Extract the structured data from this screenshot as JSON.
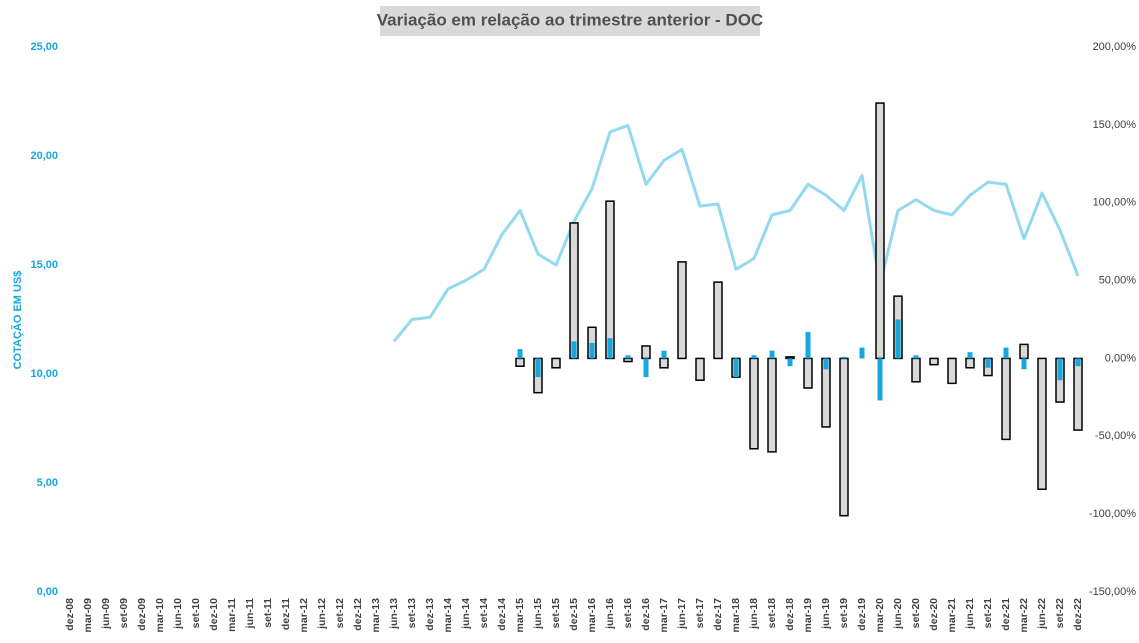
{
  "chart_data": {
    "type": "bar_line",
    "title": "Variação em relação ao trimestre anterior - DOC",
    "y_label": "COTAÇÃO EM US$",
    "categories": [
      "dez-08",
      "mar-09",
      "jun-09",
      "set-09",
      "dez-09",
      "mar-10",
      "jun-10",
      "set-10",
      "dez-10",
      "mar-11",
      "jun-11",
      "set-11",
      "dez-11",
      "mar-12",
      "jun-12",
      "set-12",
      "dez-12",
      "mar-13",
      "jun-13",
      "set-13",
      "dez-13",
      "mar-14",
      "jun-14",
      "set-14",
      "dez-14",
      "mar-15",
      "jun-15",
      "set-15",
      "dez-15",
      "mar-16",
      "jun-16",
      "set-16",
      "dez-16",
      "mar-17",
      "jun-17",
      "set-17",
      "dez-17",
      "mar-18",
      "jun-18",
      "set-18",
      "dez-18",
      "mar-19",
      "jun-19",
      "set-19",
      "dez-19",
      "mar-20",
      "jun-20",
      "set-20",
      "dez-20",
      "mar-21",
      "jun-21",
      "set-21",
      "dez-21",
      "mar-22",
      "jun-22",
      "set-22",
      "dez-22"
    ],
    "series": [
      {
        "type": "line",
        "color": "#93d9f0",
        "values": [
          null,
          null,
          null,
          null,
          null,
          null,
          null,
          null,
          null,
          null,
          null,
          null,
          null,
          null,
          null,
          null,
          null,
          null,
          11.5,
          12.5,
          12.6,
          13.9,
          14.3,
          14.8,
          16.4,
          17.5,
          15.5,
          15.0,
          17.0,
          18.5,
          21.1,
          21.4,
          18.7,
          19.8,
          20.3,
          17.7,
          17.8,
          14.8,
          15.3,
          17.3,
          17.5,
          18.7,
          18.2,
          17.5,
          19.1,
          14.1,
          17.5,
          18.0,
          17.5,
          17.3,
          18.2,
          18.8,
          18.7,
          16.2,
          18.3,
          16.6,
          14.5
        ]
      },
      {
        "type": "bar",
        "axis": "y2",
        "color": "#d9d9d9",
        "values": [
          null,
          null,
          null,
          null,
          null,
          null,
          null,
          null,
          null,
          null,
          null,
          null,
          null,
          null,
          null,
          null,
          null,
          null,
          null,
          null,
          null,
          null,
          null,
          null,
          null,
          -5,
          -22,
          -6,
          87,
          20,
          101,
          -2,
          8,
          -6,
          62,
          -14,
          49,
          -12,
          -58,
          -60,
          1,
          -19,
          -44,
          -101,
          null,
          164,
          40,
          -15,
          -4,
          -16,
          -6,
          -11,
          -52,
          9,
          -84,
          -28,
          -46
        ]
      },
      {
        "type": "bar",
        "axis": "y2",
        "color": "#15a7e0",
        "values": [
          null,
          null,
          null,
          null,
          null,
          null,
          null,
          null,
          null,
          null,
          null,
          null,
          null,
          null,
          null,
          null,
          null,
          null,
          null,
          null,
          null,
          null,
          null,
          null,
          null,
          6,
          -12,
          null,
          11,
          10,
          13,
          2,
          -12,
          5,
          null,
          null,
          null,
          -12,
          2,
          5,
          -5,
          17,
          -7,
          1,
          7,
          -27,
          25,
          2,
          null,
          null,
          4,
          -6,
          7,
          -7,
          null,
          -14,
          -5
        ]
      }
    ],
    "ylim": [
      0,
      25
    ],
    "yticks": [
      {
        "value": 0,
        "label": "0,00"
      },
      {
        "value": 5,
        "label": "5,00"
      },
      {
        "value": 10,
        "label": "10,00"
      },
      {
        "value": 15,
        "label": "15,00"
      },
      {
        "value": 20,
        "label": "20,00"
      },
      {
        "value": 25,
        "label": "25,00"
      }
    ],
    "y2lim": [
      -150,
      200
    ],
    "y2ticks": [
      {
        "value": -150,
        "label": "-150,00%"
      },
      {
        "value": -100,
        "label": "-100,00%"
      },
      {
        "value": -50,
        "label": "-50,00%"
      },
      {
        "value": 0,
        "label": "0,00%"
      },
      {
        "value": 50,
        "label": "50,00%"
      },
      {
        "value": 100,
        "label": "100,00%"
      },
      {
        "value": 150,
        "label": "150,00%"
      },
      {
        "value": 200,
        "label": "200,00%"
      }
    ],
    "grid": false
  }
}
